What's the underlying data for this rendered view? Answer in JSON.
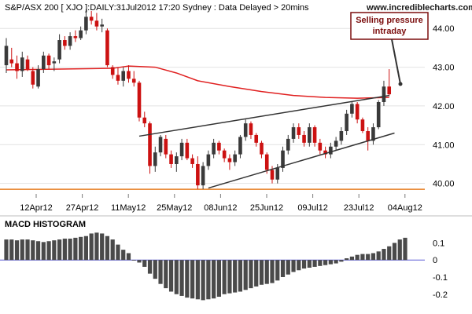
{
  "chart_data": [
    {
      "type": "candlestick",
      "title": "S&P/ASX 200 [ XJO ]:DAILY:31Jul2012 17:20 Sydney : Data Delayed > 20mins",
      "watermark": "www.incrediblecharts.com",
      "x_tick_labels": [
        "12Apr12",
        "27Apr12",
        "11May12",
        "25May12",
        "08Jun12",
        "25Jun12",
        "09Jul12",
        "23Jul12",
        "04Aug12"
      ],
      "y_ticks": [
        "40.00",
        "41.00",
        "42.00",
        "43.00",
        "44.00"
      ],
      "y_tick_values": [
        40,
        41,
        42,
        43,
        44
      ],
      "ylim": [
        39.75,
        44.45
      ],
      "candles": [
        {
          "o": 43.05,
          "h": 43.75,
          "l": 42.85,
          "c": 43.55,
          "up": true
        },
        {
          "o": 43.2,
          "h": 43.5,
          "l": 43.0,
          "c": 43.1,
          "up": false
        },
        {
          "o": 43.1,
          "h": 43.3,
          "l": 42.7,
          "c": 42.9,
          "up": false
        },
        {
          "o": 42.9,
          "h": 43.4,
          "l": 42.75,
          "c": 43.25,
          "up": true
        },
        {
          "o": 43.2,
          "h": 43.3,
          "l": 42.9,
          "c": 42.95,
          "up": false
        },
        {
          "o": 42.9,
          "h": 43.0,
          "l": 42.45,
          "c": 42.55,
          "up": false
        },
        {
          "o": 42.5,
          "h": 43.05,
          "l": 42.45,
          "c": 42.95,
          "up": true
        },
        {
          "o": 42.95,
          "h": 43.4,
          "l": 42.85,
          "c": 43.3,
          "up": true
        },
        {
          "o": 43.3,
          "h": 43.35,
          "l": 42.95,
          "c": 43.05,
          "up": false
        },
        {
          "o": 43.1,
          "h": 43.25,
          "l": 42.9,
          "c": 43.15,
          "up": true
        },
        {
          "o": 43.2,
          "h": 43.85,
          "l": 43.1,
          "c": 43.7,
          "up": true
        },
        {
          "o": 43.7,
          "h": 43.8,
          "l": 43.45,
          "c": 43.55,
          "up": false
        },
        {
          "o": 43.55,
          "h": 43.9,
          "l": 43.45,
          "c": 43.8,
          "up": true
        },
        {
          "o": 43.8,
          "h": 43.95,
          "l": 43.65,
          "c": 43.75,
          "up": false
        },
        {
          "o": 43.75,
          "h": 44.05,
          "l": 43.7,
          "c": 43.95,
          "up": true
        },
        {
          "o": 43.95,
          "h": 44.5,
          "l": 43.85,
          "c": 44.3,
          "up": true
        },
        {
          "o": 44.3,
          "h": 44.45,
          "l": 44.1,
          "c": 44.2,
          "up": false
        },
        {
          "o": 44.2,
          "h": 44.4,
          "l": 43.95,
          "c": 44.05,
          "up": false
        },
        {
          "o": 44.05,
          "h": 44.25,
          "l": 43.9,
          "c": 44.1,
          "up": true
        },
        {
          "o": 43.95,
          "h": 44.0,
          "l": 43.0,
          "c": 43.05,
          "up": false
        },
        {
          "o": 43.0,
          "h": 43.05,
          "l": 42.7,
          "c": 42.8,
          "up": false
        },
        {
          "o": 42.8,
          "h": 43.0,
          "l": 42.55,
          "c": 42.65,
          "up": false
        },
        {
          "o": 42.65,
          "h": 43.0,
          "l": 42.5,
          "c": 42.9,
          "up": true
        },
        {
          "o": 42.9,
          "h": 43.05,
          "l": 42.6,
          "c": 42.7,
          "up": false
        },
        {
          "o": 42.7,
          "h": 42.9,
          "l": 42.5,
          "c": 42.6,
          "up": false
        },
        {
          "o": 42.6,
          "h": 42.65,
          "l": 41.6,
          "c": 41.7,
          "up": false
        },
        {
          "o": 41.7,
          "h": 41.85,
          "l": 41.45,
          "c": 41.55,
          "up": false
        },
        {
          "o": 41.55,
          "h": 41.6,
          "l": 40.25,
          "c": 40.45,
          "up": false
        },
        {
          "o": 40.45,
          "h": 40.95,
          "l": 40.3,
          "c": 40.8,
          "up": true
        },
        {
          "o": 40.8,
          "h": 41.25,
          "l": 40.7,
          "c": 41.2,
          "up": true
        },
        {
          "o": 41.15,
          "h": 41.25,
          "l": 40.65,
          "c": 40.75,
          "up": false
        },
        {
          "o": 40.75,
          "h": 40.85,
          "l": 40.4,
          "c": 40.5,
          "up": false
        },
        {
          "o": 40.5,
          "h": 40.8,
          "l": 40.3,
          "c": 40.7,
          "up": true
        },
        {
          "o": 40.7,
          "h": 41.15,
          "l": 40.6,
          "c": 41.05,
          "up": true
        },
        {
          "o": 41.05,
          "h": 41.15,
          "l": 40.6,
          "c": 40.65,
          "up": false
        },
        {
          "o": 40.65,
          "h": 40.75,
          "l": 40.4,
          "c": 40.5,
          "up": false
        },
        {
          "o": 40.5,
          "h": 40.7,
          "l": 39.85,
          "c": 39.95,
          "up": false
        },
        {
          "o": 39.95,
          "h": 40.55,
          "l": 39.85,
          "c": 40.45,
          "up": true
        },
        {
          "o": 40.45,
          "h": 40.85,
          "l": 40.35,
          "c": 40.75,
          "up": true
        },
        {
          "o": 40.75,
          "h": 41.15,
          "l": 40.65,
          "c": 41.05,
          "up": true
        },
        {
          "o": 41.05,
          "h": 41.1,
          "l": 40.75,
          "c": 40.85,
          "up": false
        },
        {
          "o": 40.85,
          "h": 40.9,
          "l": 40.55,
          "c": 40.65,
          "up": false
        },
        {
          "o": 40.65,
          "h": 40.75,
          "l": 40.35,
          "c": 40.55,
          "up": false
        },
        {
          "o": 40.55,
          "h": 40.85,
          "l": 40.45,
          "c": 40.75,
          "up": true
        },
        {
          "o": 40.75,
          "h": 41.25,
          "l": 40.65,
          "c": 41.2,
          "up": true
        },
        {
          "o": 41.2,
          "h": 41.65,
          "l": 41.1,
          "c": 41.55,
          "up": true
        },
        {
          "o": 41.55,
          "h": 41.6,
          "l": 41.15,
          "c": 41.25,
          "up": false
        },
        {
          "o": 41.25,
          "h": 41.3,
          "l": 40.95,
          "c": 41.05,
          "up": false
        },
        {
          "o": 41.05,
          "h": 41.1,
          "l": 40.65,
          "c": 40.75,
          "up": false
        },
        {
          "o": 40.75,
          "h": 40.8,
          "l": 40.25,
          "c": 40.35,
          "up": false
        },
        {
          "o": 40.35,
          "h": 40.45,
          "l": 40.0,
          "c": 40.1,
          "up": false
        },
        {
          "o": 40.1,
          "h": 40.5,
          "l": 40.0,
          "c": 40.4,
          "up": true
        },
        {
          "o": 40.4,
          "h": 40.95,
          "l": 40.3,
          "c": 40.85,
          "up": true
        },
        {
          "o": 40.85,
          "h": 41.25,
          "l": 40.75,
          "c": 41.15,
          "up": true
        },
        {
          "o": 41.15,
          "h": 41.55,
          "l": 41.05,
          "c": 41.45,
          "up": true
        },
        {
          "o": 41.45,
          "h": 41.55,
          "l": 41.15,
          "c": 41.25,
          "up": false
        },
        {
          "o": 41.25,
          "h": 41.35,
          "l": 40.95,
          "c": 41.05,
          "up": false
        },
        {
          "o": 41.05,
          "h": 41.55,
          "l": 40.95,
          "c": 41.45,
          "up": true
        },
        {
          "o": 41.45,
          "h": 41.5,
          "l": 40.95,
          "c": 41.05,
          "up": false
        },
        {
          "o": 41.05,
          "h": 41.15,
          "l": 40.75,
          "c": 40.85,
          "up": false
        },
        {
          "o": 40.85,
          "h": 40.95,
          "l": 40.65,
          "c": 40.75,
          "up": false
        },
        {
          "o": 40.75,
          "h": 41.05,
          "l": 40.65,
          "c": 40.95,
          "up": true
        },
        {
          "o": 40.95,
          "h": 41.2,
          "l": 40.85,
          "c": 41.1,
          "up": true
        },
        {
          "o": 41.1,
          "h": 41.45,
          "l": 41.0,
          "c": 41.35,
          "up": true
        },
        {
          "o": 41.35,
          "h": 41.9,
          "l": 41.25,
          "c": 41.8,
          "up": true
        },
        {
          "o": 41.8,
          "h": 42.1,
          "l": 41.7,
          "c": 42.05,
          "up": true
        },
        {
          "o": 42.05,
          "h": 42.1,
          "l": 41.55,
          "c": 41.65,
          "up": false
        },
        {
          "o": 41.65,
          "h": 41.7,
          "l": 41.3,
          "c": 41.35,
          "up": false
        },
        {
          "o": 41.35,
          "h": 41.45,
          "l": 40.85,
          "c": 41.1,
          "up": false
        },
        {
          "o": 41.1,
          "h": 41.55,
          "l": 41.0,
          "c": 41.45,
          "up": true
        },
        {
          "o": 41.45,
          "h": 42.15,
          "l": 41.4,
          "c": 42.1,
          "up": true
        },
        {
          "o": 42.1,
          "h": 42.65,
          "l": 42.0,
          "c": 42.5,
          "up": true
        },
        {
          "o": 42.5,
          "h": 42.95,
          "l": 42.25,
          "c": 42.3,
          "up": false
        }
      ],
      "moving_average": [
        [
          0,
          42.93
        ],
        [
          20,
          42.97
        ],
        [
          23,
          43.03
        ],
        [
          28,
          43.0
        ],
        [
          32,
          42.85
        ],
        [
          36,
          42.65
        ],
        [
          42,
          42.5
        ],
        [
          48,
          42.37
        ],
        [
          54,
          42.27
        ],
        [
          60,
          42.22
        ],
        [
          66,
          42.2
        ],
        [
          72,
          42.22
        ]
      ],
      "trendlines": [
        {
          "from": [
            25,
            41.22
          ],
          "to": [
            72,
            42.27
          ]
        },
        {
          "from": [
            38,
            39.88
          ],
          "to": [
            73,
            41.3
          ]
        }
      ],
      "support_level": 39.85,
      "annotation": {
        "lines": [
          "Selling pressure",
          "intraday"
        ]
      }
    },
    {
      "type": "bar",
      "title": "MACD HISTOGRAM",
      "y_ticks": [
        "0.1",
        "0",
        "-0.1",
        "-0.2"
      ],
      "y_tick_values": [
        0.1,
        0,
        -0.1,
        -0.2
      ],
      "ylim": [
        -0.27,
        0.18
      ],
      "values": [
        0.12,
        0.12,
        0.115,
        0.12,
        0.12,
        0.115,
        0.11,
        0.105,
        0.11,
        0.115,
        0.12,
        0.125,
        0.125,
        0.13,
        0.135,
        0.14,
        0.155,
        0.16,
        0.155,
        0.14,
        0.12,
        0.09,
        0.06,
        0.04,
        0.0,
        -0.015,
        -0.04,
        -0.08,
        -0.11,
        -0.14,
        -0.165,
        -0.185,
        -0.2,
        -0.21,
        -0.22,
        -0.225,
        -0.23,
        -0.235,
        -0.23,
        -0.225,
        -0.215,
        -0.2,
        -0.195,
        -0.19,
        -0.185,
        -0.175,
        -0.165,
        -0.155,
        -0.145,
        -0.14,
        -0.135,
        -0.12,
        -0.1,
        -0.085,
        -0.07,
        -0.06,
        -0.05,
        -0.045,
        -0.04,
        -0.035,
        -0.03,
        -0.025,
        -0.02,
        -0.01,
        0.01,
        0.02,
        0.03,
        0.035,
        0.035,
        0.04,
        0.05,
        0.065,
        0.08,
        0.1,
        0.12,
        0.13
      ]
    }
  ]
}
